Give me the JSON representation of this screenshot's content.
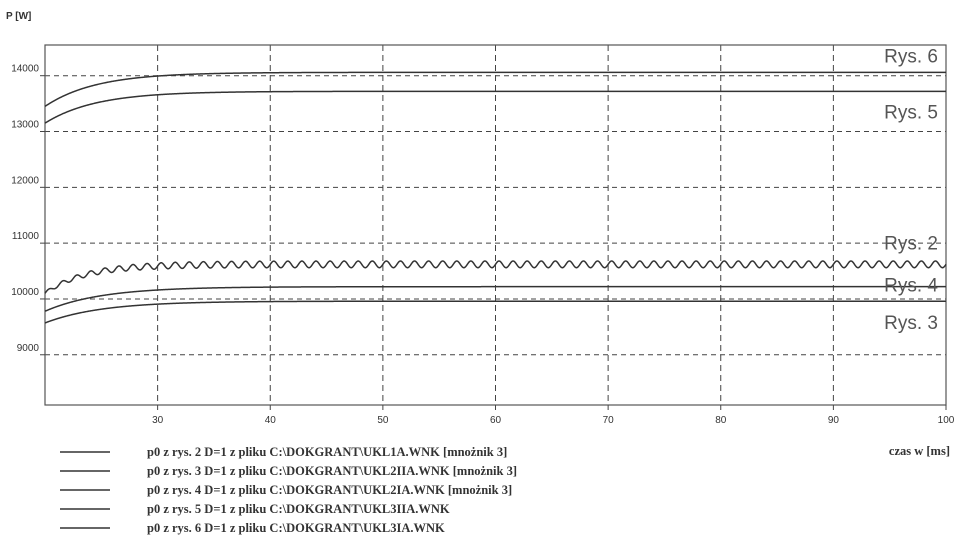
{
  "chart_data": {
    "type": "line",
    "ylabel": "P [W]",
    "xlabel": "czas w [ms]",
    "xlim": [
      20,
      100
    ],
    "ylim": [
      8100,
      14550
    ],
    "x_ticks": [
      30,
      40,
      50,
      60,
      70,
      80,
      90,
      100
    ],
    "y_ticks": [
      9000,
      10000,
      11000,
      12000,
      13000,
      14000
    ],
    "y_tick_labels": [
      "9000",
      "10000",
      "11000",
      "12000",
      "13000",
      "14000"
    ],
    "grid": true,
    "series": [
      {
        "label": "Rys. 6",
        "start": 13450,
        "plateau": 14060,
        "tau": 4.5,
        "ripple_amp": 0,
        "ripple_period": 0
      },
      {
        "label": "Rys. 5",
        "start": 13150,
        "plateau": 13720,
        "tau": 4.5,
        "ripple_amp": 0,
        "ripple_period": 0
      },
      {
        "label": "Rys. 2",
        "start": 10100,
        "plateau": 10620,
        "tau": 3.5,
        "ripple_amp": 60,
        "ripple_period": 1.25
      },
      {
        "label": "Rys. 4",
        "start": 9780,
        "plateau": 10220,
        "tau": 5,
        "ripple_amp": 0,
        "ripple_period": 0
      },
      {
        "label": "Rys. 3",
        "start": 9570,
        "plateau": 9960,
        "tau": 5,
        "ripple_amp": 0,
        "ripple_period": 0
      }
    ],
    "legend": [
      "p0 z rys. 2 D=1 z pliku C:\\DOKGRANT\\UKL1A.WNK [mnożnik 3]",
      "p0 z rys. 3 D=1 z pliku C:\\DOKGRANT\\UKL2IIA.WNK [mnożnik 3]",
      "p0 z rys. 4 D=1 z pliku C:\\DOKGRANT\\UKL2IA.WNK [mnożnik 3]",
      "p0 z rys. 5 D=1 z pliku C:\\DOKGRANT\\UKL3IIA.WNK",
      "p0 z rys. 6 D=1 z pliku C:\\DOKGRANT\\UKL3IA.WNK"
    ]
  }
}
